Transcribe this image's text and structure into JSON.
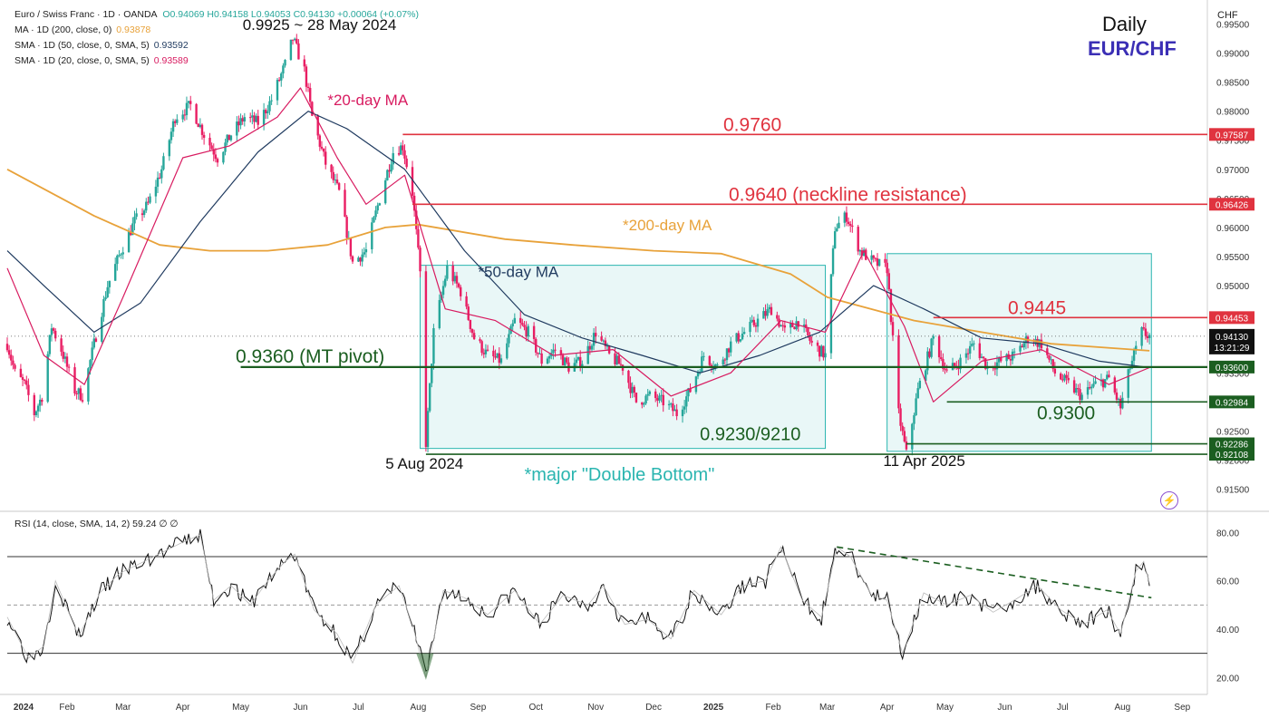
{
  "legend": {
    "symbol": "Euro / Swiss Franc · 1D · OANDA",
    "ohlc": "O0.94069 H0.94158 L0.94053 C0.94130 +0.00064 (+0.07%)",
    "ma200": {
      "label": "MA · 1D (200, close, 0)",
      "value": "0.93878",
      "color": "#e8a23a"
    },
    "sma50": {
      "label": "SMA · 1D (50, close, 0, SMA, 5)",
      "value": "0.93592",
      "color": "#1f3a5f"
    },
    "sma20": {
      "label": "SMA · 1D (20, close, 0, SMA, 5)",
      "value": "0.93589",
      "color": "#d81b60"
    }
  },
  "titles": {
    "timeframe": "Daily",
    "pair": "EUR/CHF",
    "currency": "CHF"
  },
  "rsi_legend": "RSI (14, close, SMA, 14, 2)  59.24  ∅  ∅",
  "colors": {
    "up": "#26a69a",
    "down": "#e91e63",
    "resistance": "#e0333f",
    "support": "#1b5e20",
    "box": "#2ab5b0",
    "ma200": "#e8a23a",
    "ma50": "#1f3a5f",
    "ma20": "#d81b60"
  },
  "chart_data": [
    {
      "type": "candlestick",
      "title": "EUR/CHF Daily",
      "ylim": [
        0.9115,
        0.9985
      ],
      "y_ticks": [
        "0.99500",
        "0.99000",
        "0.98500",
        "0.98000",
        "0.97500",
        "0.97000",
        "0.96500",
        "0.96000",
        "0.95500",
        "0.95000",
        "0.94500",
        "0.94000",
        "0.93500",
        "0.93000",
        "0.92500",
        "0.92000",
        "0.91500"
      ],
      "x_ticks": [
        "2024",
        "Feb",
        "Mar",
        "Apr",
        "May",
        "Jun",
        "Jul",
        "Aug",
        "Sep",
        "Oct",
        "Nov",
        "Dec",
        "2025",
        "Feb",
        "Mar",
        "Apr",
        "May",
        "Jun",
        "Jul",
        "Aug",
        "Sep"
      ],
      "close_path": [
        [
          "2024-01-01",
          0.94
        ],
        [
          "2024-01-05",
          0.935
        ],
        [
          "2024-01-10",
          0.933
        ],
        [
          "2024-01-15",
          0.928
        ],
        [
          "2024-01-19",
          0.931
        ],
        [
          "2024-01-24",
          0.943
        ],
        [
          "2024-01-29",
          0.939
        ],
        [
          "2024-02-05",
          0.932
        ],
        [
          "2024-02-09",
          0.931
        ],
        [
          "2024-02-15",
          0.94
        ],
        [
          "2024-02-22",
          0.95
        ],
        [
          "2024-02-29",
          0.956
        ],
        [
          "2024-03-07",
          0.961
        ],
        [
          "2024-03-14",
          0.964
        ],
        [
          "2024-03-21",
          0.97
        ],
        [
          "2024-03-28",
          0.979
        ],
        [
          "2024-04-05",
          0.981
        ],
        [
          "2024-04-12",
          0.976
        ],
        [
          "2024-04-19",
          0.972
        ],
        [
          "2024-04-26",
          0.976
        ],
        [
          "2024-05-03",
          0.979
        ],
        [
          "2024-05-10",
          0.978
        ],
        [
          "2024-05-17",
          0.982
        ],
        [
          "2024-05-24",
          0.988
        ],
        [
          "2024-05-28",
          0.9925
        ],
        [
          "2024-06-03",
          0.987
        ],
        [
          "2024-06-07",
          0.979
        ],
        [
          "2024-06-14",
          0.971
        ],
        [
          "2024-06-21",
          0.966
        ],
        [
          "2024-06-28",
          0.954
        ],
        [
          "2024-07-05",
          0.956
        ],
        [
          "2024-07-12",
          0.965
        ],
        [
          "2024-07-19",
          0.973
        ],
        [
          "2024-07-24",
          0.974
        ],
        [
          "2024-07-29",
          0.966
        ],
        [
          "2024-08-02",
          0.952
        ],
        [
          "2024-08-05",
          0.923
        ],
        [
          "2024-08-09",
          0.942
        ],
        [
          "2024-08-16",
          0.953
        ],
        [
          "2024-08-23",
          0.949
        ],
        [
          "2024-08-30",
          0.941
        ],
        [
          "2024-09-06",
          0.938
        ],
        [
          "2024-09-13",
          0.937
        ],
        [
          "2024-09-20",
          0.944
        ],
        [
          "2024-09-27",
          0.942
        ],
        [
          "2024-10-04",
          0.937
        ],
        [
          "2024-10-11",
          0.939
        ],
        [
          "2024-10-18",
          0.936
        ],
        [
          "2024-10-25",
          0.937
        ],
        [
          "2024-11-01",
          0.942
        ],
        [
          "2024-11-08",
          0.938
        ],
        [
          "2024-11-15",
          0.936
        ],
        [
          "2024-11-22",
          0.93
        ],
        [
          "2024-11-29",
          0.931
        ],
        [
          "2024-12-06",
          0.93
        ],
        [
          "2024-12-13",
          0.928
        ],
        [
          "2024-12-20",
          0.932
        ],
        [
          "2024-12-27",
          0.938
        ],
        [
          "2025-01-03",
          0.936
        ],
        [
          "2025-01-10",
          0.94
        ],
        [
          "2025-01-17",
          0.942
        ],
        [
          "2025-01-24",
          0.944
        ],
        [
          "2025-01-31",
          0.946
        ],
        [
          "2025-02-07",
          0.942
        ],
        [
          "2025-02-14",
          0.944
        ],
        [
          "2025-02-21",
          0.94
        ],
        [
          "2025-02-28",
          0.938
        ],
        [
          "2025-03-05",
          0.96
        ],
        [
          "2025-03-11",
          0.962
        ],
        [
          "2025-03-18",
          0.956
        ],
        [
          "2025-03-25",
          0.954
        ],
        [
          "2025-04-01",
          0.953
        ],
        [
          "2025-04-07",
          0.928
        ],
        [
          "2025-04-11",
          0.921
        ],
        [
          "2025-04-17",
          0.932
        ],
        [
          "2025-04-25",
          0.941
        ],
        [
          "2025-05-02",
          0.935
        ],
        [
          "2025-05-09",
          0.937
        ],
        [
          "2025-05-16",
          0.94
        ],
        [
          "2025-05-23",
          0.936
        ],
        [
          "2025-05-30",
          0.937
        ],
        [
          "2025-06-06",
          0.938
        ],
        [
          "2025-06-13",
          0.941
        ],
        [
          "2025-06-20",
          0.94
        ],
        [
          "2025-06-27",
          0.935
        ],
        [
          "2025-07-04",
          0.933
        ],
        [
          "2025-07-11",
          0.931
        ],
        [
          "2025-07-18",
          0.933
        ],
        [
          "2025-07-25",
          0.934
        ],
        [
          "2025-07-31",
          0.929
        ],
        [
          "2025-08-05",
          0.936
        ],
        [
          "2025-08-11",
          0.942
        ],
        [
          "2025-08-15",
          0.9413
        ]
      ],
      "ma200_path": [
        [
          "2024-01-01",
          0.97
        ],
        [
          "2024-02-15",
          0.962
        ],
        [
          "2024-03-20",
          0.957
        ],
        [
          "2024-04-15",
          0.956
        ],
        [
          "2024-05-15",
          0.956
        ],
        [
          "2024-06-15",
          0.957
        ],
        [
          "2024-07-15",
          0.96
        ],
        [
          "2024-08-01",
          0.9605
        ],
        [
          "2024-09-15",
          0.958
        ],
        [
          "2024-10-20",
          0.957
        ],
        [
          "2024-12-01",
          0.956
        ],
        [
          "2025-01-05",
          0.9555
        ],
        [
          "2025-02-10",
          0.952
        ],
        [
          "2025-03-01",
          0.948
        ],
        [
          "2025-04-15",
          0.944
        ],
        [
          "2025-05-20",
          0.942
        ],
        [
          "2025-06-25",
          0.94
        ],
        [
          "2025-08-15",
          0.9388
        ]
      ],
      "ma50_path": [
        [
          "2024-01-01",
          0.956
        ],
        [
          "2024-01-20",
          0.95
        ],
        [
          "2024-02-15",
          0.942
        ],
        [
          "2024-03-10",
          0.947
        ],
        [
          "2024-04-10",
          0.961
        ],
        [
          "2024-05-10",
          0.973
        ],
        [
          "2024-06-05",
          0.98
        ],
        [
          "2024-06-25",
          0.977
        ],
        [
          "2024-07-25",
          0.97
        ],
        [
          "2024-08-25",
          0.956
        ],
        [
          "2024-09-25",
          0.945
        ],
        [
          "2024-10-25",
          0.941
        ],
        [
          "2024-11-25",
          0.938
        ],
        [
          "2024-12-25",
          0.935
        ],
        [
          "2025-01-25",
          0.938
        ],
        [
          "2025-02-25",
          0.942
        ],
        [
          "2025-03-25",
          0.95
        ],
        [
          "2025-04-20",
          0.946
        ],
        [
          "2025-05-20",
          0.941
        ],
        [
          "2025-06-20",
          0.94
        ],
        [
          "2025-07-20",
          0.937
        ],
        [
          "2025-08-15",
          0.9359
        ]
      ],
      "ma20_path": [
        [
          "2024-01-01",
          0.953
        ],
        [
          "2024-01-20",
          0.938
        ],
        [
          "2024-02-10",
          0.933
        ],
        [
          "2024-03-01",
          0.948
        ],
        [
          "2024-04-01",
          0.972
        ],
        [
          "2024-04-25",
          0.974
        ],
        [
          "2024-05-20",
          0.979
        ],
        [
          "2024-06-01",
          0.984
        ],
        [
          "2024-06-20",
          0.972
        ],
        [
          "2024-07-05",
          0.964
        ],
        [
          "2024-07-25",
          0.969
        ],
        [
          "2024-08-15",
          0.946
        ],
        [
          "2024-09-10",
          0.944
        ],
        [
          "2024-10-10",
          0.938
        ],
        [
          "2024-11-10",
          0.939
        ],
        [
          "2024-12-10",
          0.931
        ],
        [
          "2025-01-10",
          0.935
        ],
        [
          "2025-02-05",
          0.944
        ],
        [
          "2025-02-28",
          0.942
        ],
        [
          "2025-03-20",
          0.956
        ],
        [
          "2025-04-10",
          0.943
        ],
        [
          "2025-04-25",
          0.93
        ],
        [
          "2025-05-20",
          0.937
        ],
        [
          "2025-06-20",
          0.939
        ],
        [
          "2025-07-25",
          0.933
        ],
        [
          "2025-08-15",
          0.9359
        ]
      ],
      "levels": [
        {
          "price": 0.976,
          "label": "0.9760",
          "kind": "resistance",
          "x_start": "2024-07-24",
          "tag": "0.97587"
        },
        {
          "price": 0.964,
          "label": "0.9640 (neckline resistance)",
          "kind": "resistance",
          "x_start": "2024-07-29",
          "tag": "0.96426"
        },
        {
          "price": 0.9445,
          "label": "0.9445",
          "kind": "resistance",
          "x_start": "2025-04-25",
          "tag": "0.94453"
        },
        {
          "price": 0.936,
          "label": "0.9360 (MT pivot)",
          "kind": "support",
          "x_start": "2024-05-01",
          "tag": "0.93600"
        },
        {
          "price": 0.93,
          "label": "0.9300",
          "kind": "support",
          "x_start": "2025-05-02",
          "tag": "0.92984"
        },
        {
          "price": 0.9228,
          "label": "",
          "kind": "support",
          "x_start": "2025-04-11",
          "tag": "0.92286"
        },
        {
          "price": 0.921,
          "label": "",
          "kind": "support",
          "x_start": "2024-08-05",
          "tag": "0.92108"
        }
      ],
      "current": {
        "price": 0.9413,
        "tag": "0.94130",
        "countdown": "13:21:29"
      },
      "boxes": [
        {
          "from": "2024-08-02",
          "to": "2025-02-28",
          "top": 0.9535,
          "bottom": 0.922
        },
        {
          "from": "2025-04-01",
          "to": "2025-08-16",
          "top": 0.9555,
          "bottom": 0.9215
        }
      ],
      "annotations": [
        {
          "text": "0.9925 ~ 28 May 2024",
          "x": "2024-05-02",
          "y": 0.994,
          "color": "#111"
        },
        {
          "text": "*20-day MA",
          "x": "2024-06-15",
          "y": 0.981,
          "color": "#d81b60"
        },
        {
          "text": "*200-day MA",
          "x": "2024-11-15",
          "y": 0.9595,
          "color": "#e8a23a"
        },
        {
          "text": "*50-day MA",
          "x": "2024-09-01",
          "y": 0.9515,
          "color": "#1f3a5f"
        },
        {
          "text": "5 Aug 2024",
          "x": "2024-07-15",
          "y": 0.9185,
          "color": "#111"
        },
        {
          "text": "*major \"Double Bottom\"",
          "x": "2024-09-25",
          "y": 0.9165,
          "color": "#2ab5b0"
        },
        {
          "text": "0.9230/9210",
          "x": "2024-12-25",
          "y": 0.9234,
          "color": "#1b5e20"
        },
        {
          "text": "11 Apr 2025",
          "x": "2025-03-30",
          "y": 0.919,
          "color": "#111"
        }
      ]
    },
    {
      "type": "line",
      "title": "RSI (14, close, SMA, 14, 2)",
      "value": 59.24,
      "ylim": [
        13,
        88
      ],
      "y_ticks": [
        "80.00",
        "60.00",
        "40.00",
        "20.00"
      ],
      "bands": [
        70,
        50,
        30
      ],
      "rsi_path": [
        [
          "2024-01-01",
          45
        ],
        [
          "2024-01-12",
          28
        ],
        [
          "2024-01-20",
          33
        ],
        [
          "2024-01-26",
          60
        ],
        [
          "2024-02-07",
          37
        ],
        [
          "2024-02-18",
          55
        ],
        [
          "2024-02-28",
          63
        ],
        [
          "2024-03-12",
          68
        ],
        [
          "2024-03-22",
          72
        ],
        [
          "2024-04-01",
          76
        ],
        [
          "2024-04-10",
          79
        ],
        [
          "2024-04-17",
          52
        ],
        [
          "2024-04-26",
          58
        ],
        [
          "2024-05-06",
          50
        ],
        [
          "2024-05-15",
          60
        ],
        [
          "2024-05-24",
          68
        ],
        [
          "2024-05-29",
          71
        ],
        [
          "2024-06-08",
          48
        ],
        [
          "2024-06-20",
          38
        ],
        [
          "2024-06-28",
          26
        ],
        [
          "2024-07-10",
          50
        ],
        [
          "2024-07-22",
          58
        ],
        [
          "2024-07-29",
          42
        ],
        [
          "2024-08-05",
          20
        ],
        [
          "2024-08-14",
          56
        ],
        [
          "2024-08-25",
          53
        ],
        [
          "2024-09-06",
          46
        ],
        [
          "2024-09-20",
          56
        ],
        [
          "2024-10-03",
          42
        ],
        [
          "2024-10-15",
          54
        ],
        [
          "2024-10-28",
          50
        ],
        [
          "2024-11-05",
          58
        ],
        [
          "2024-11-16",
          42
        ],
        [
          "2024-11-28",
          44
        ],
        [
          "2024-12-10",
          36
        ],
        [
          "2024-12-22",
          56
        ],
        [
          "2025-01-05",
          46
        ],
        [
          "2025-01-16",
          58
        ],
        [
          "2025-01-28",
          60
        ],
        [
          "2025-02-05",
          74
        ],
        [
          "2025-02-16",
          52
        ],
        [
          "2025-02-26",
          45
        ],
        [
          "2025-03-06",
          74
        ],
        [
          "2025-03-13",
          70
        ],
        [
          "2025-03-24",
          54
        ],
        [
          "2025-04-01",
          52
        ],
        [
          "2025-04-09",
          30
        ],
        [
          "2025-04-20",
          55
        ],
        [
          "2025-05-02",
          50
        ],
        [
          "2025-05-14",
          54
        ],
        [
          "2025-05-26",
          47
        ],
        [
          "2025-06-06",
          52
        ],
        [
          "2025-06-18",
          58
        ],
        [
          "2025-06-30",
          48
        ],
        [
          "2025-07-12",
          42
        ],
        [
          "2025-07-24",
          48
        ],
        [
          "2025-07-31",
          38
        ],
        [
          "2025-08-08",
          64
        ],
        [
          "2025-08-12",
          68
        ],
        [
          "2025-08-15",
          59
        ]
      ],
      "trendline": [
        [
          "2025-03-06",
          74
        ],
        [
          "2025-08-16",
          53
        ]
      ]
    }
  ]
}
